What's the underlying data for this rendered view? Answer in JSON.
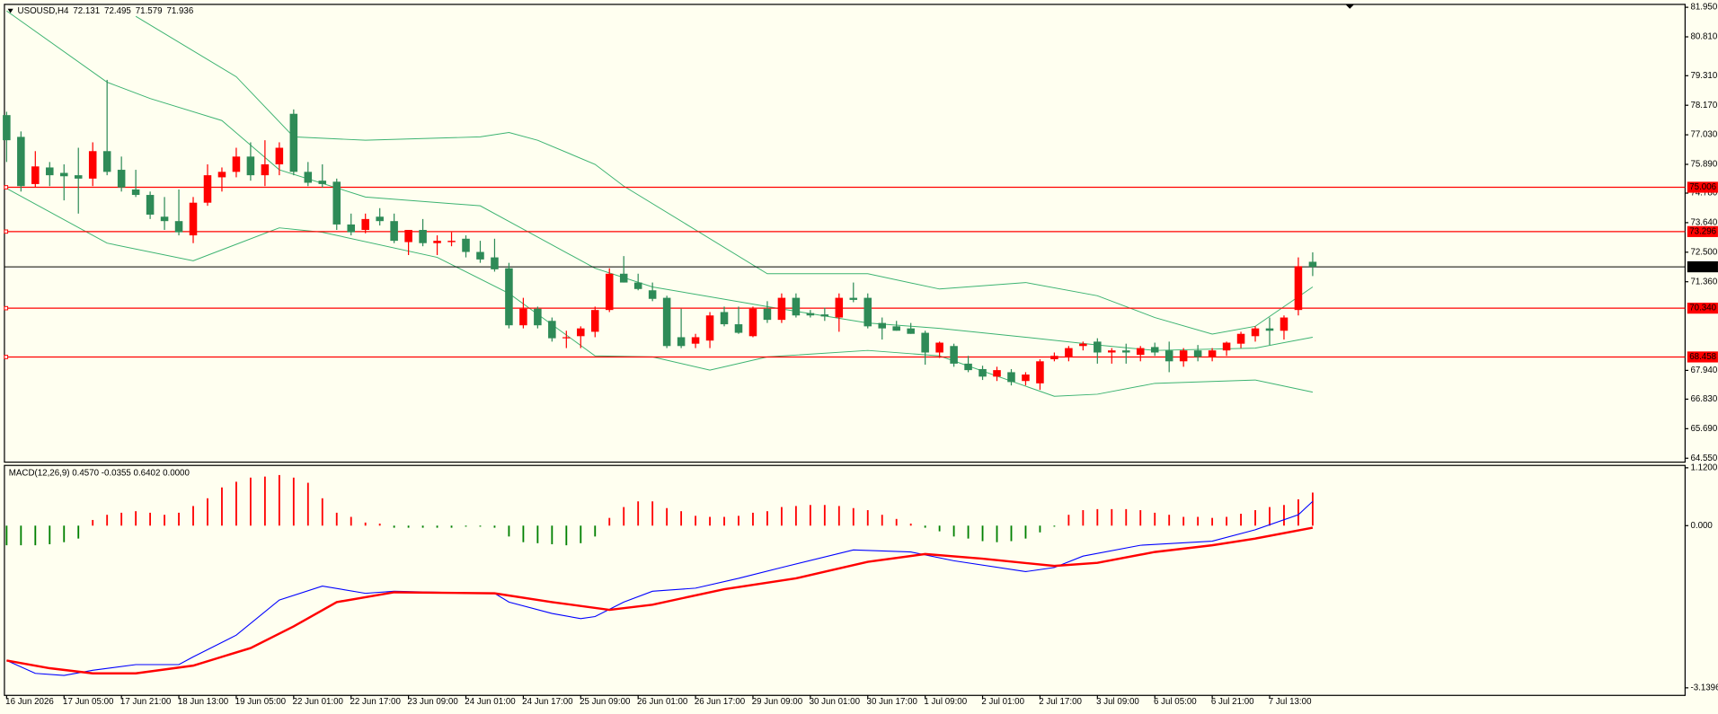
{
  "chart_data": [
    {
      "type": "candlestick",
      "title": "USOUSD,H4",
      "categories": [
        "16 Jun 2026",
        null,
        null,
        null,
        "17 Jun 05:00",
        null,
        null,
        null,
        "17 Jun 21:00",
        null,
        null,
        null,
        "18 Jun 13:00",
        null,
        null,
        null,
        "19 Jun 05:00",
        null,
        null,
        null,
        "22 Jun 01:00",
        null,
        null,
        null,
        "22 Jun 17:00",
        null,
        null,
        null,
        "23 Jun 09:00",
        null,
        null,
        null,
        "24 Jun 01:00",
        null,
        null,
        null,
        "24 Jun 17:00",
        null,
        null,
        null,
        "25 Jun 09:00",
        null,
        null,
        null,
        "26 Jun 01:00",
        null,
        null,
        null,
        "26 Jun 17:00",
        null,
        null,
        null,
        "29 Jun 09:00",
        null,
        null,
        null,
        "30 Jun 01:00",
        null,
        null,
        null,
        "30 Jun 17:00",
        null,
        null,
        null,
        "1 Jul 09:00",
        null,
        null,
        null,
        "2 Jul 01:00",
        null,
        null,
        null,
        "2 Jul 17:00",
        null,
        null,
        null,
        "3 Jul 09:00",
        null,
        null,
        null,
        "6 Jul 05:00",
        null,
        null,
        null,
        "6 Jul 21:00",
        null,
        null,
        null,
        "7 Jul 13:00",
        null,
        null,
        null
      ],
      "open": [
        77.79,
        76.95,
        75.13,
        75.77,
        75.56,
        75.47,
        75.34,
        76.4,
        75.68,
        74.92,
        74.71,
        73.87,
        73.7,
        73.15,
        74.41,
        75.39,
        75.6,
        76.19,
        75.47,
        75.89,
        77.84,
        75.6,
        75.26,
        75.22,
        73.57,
        73.36,
        73.87,
        73.7,
        72.89,
        73.36,
        72.85,
        72.89,
        73.02,
        72.51,
        72.3,
        71.88,
        69.68,
        70.32,
        69.85,
        69.18,
        69.26,
        69.43,
        70.27,
        71.67,
        71.33,
        71.03,
        70.74,
        69.22,
        68.97,
        69.09,
        70.19,
        69.72,
        69.26,
        70.32,
        69.89,
        70.74,
        70.15,
        70.1,
        69.98,
        70.74,
        70.74,
        69.77,
        69.64,
        69.56,
        69.39,
        68.63,
        68.88,
        68.2,
        67.99,
        67.7,
        67.87,
        67.53,
        67.44,
        68.37,
        68.46,
        68.88,
        69.05,
        68.63,
        68.71,
        68.54,
        68.84,
        68.71,
        68.29,
        68.71,
        68.46,
        68.71,
        68.97,
        69.26,
        69.56,
        69.47,
        70.27,
        72.131
      ],
      "high": [
        77.92,
        77.16,
        76.4,
        75.98,
        75.89,
        76.53,
        76.74,
        79.15,
        76.19,
        75.68,
        74.84,
        74.63,
        74.92,
        74.63,
        75.89,
        75.77,
        76.53,
        76.74,
        76.82,
        76.74,
        78.01,
        75.98,
        75.89,
        75.34,
        73.99,
        73.99,
        74.2,
        73.99,
        73.36,
        73.78,
        73.15,
        73.27,
        73.15,
        72.94,
        73.02,
        72.09,
        70.74,
        70.4,
        69.98,
        69.47,
        69.64,
        70.4,
        71.88,
        72.35,
        71.67,
        71.33,
        70.82,
        70.32,
        69.35,
        70.19,
        70.4,
        70.4,
        70.4,
        70.61,
        70.91,
        70.91,
        70.27,
        70.36,
        70.91,
        71.33,
        70.91,
        69.98,
        69.85,
        69.77,
        69.47,
        69.05,
        68.97,
        68.5,
        68.12,
        68.08,
        67.99,
        67.87,
        68.37,
        68.63,
        68.88,
        69.05,
        69.18,
        68.8,
        68.97,
        68.88,
        69.01,
        69.05,
        68.8,
        68.92,
        68.8,
        69.05,
        69.43,
        69.64,
        69.98,
        70.06,
        72.3,
        72.495
      ],
      "low": [
        75.98,
        74.84,
        75.0,
        75.05,
        74.5,
        73.99,
        75.05,
        75.47,
        74.84,
        74.63,
        73.78,
        73.36,
        73.15,
        72.85,
        74.29,
        74.84,
        75.39,
        75.26,
        75.05,
        75.47,
        75.47,
        75.05,
        75.0,
        73.36,
        73.15,
        73.23,
        73.53,
        72.85,
        72.39,
        72.73,
        72.39,
        72.73,
        72.3,
        72.09,
        71.75,
        69.56,
        69.56,
        69.56,
        69.05,
        68.8,
        68.8,
        69.22,
        70.19,
        71.33,
        71.03,
        70.61,
        68.8,
        68.8,
        68.8,
        68.8,
        69.64,
        69.35,
        69.22,
        69.77,
        69.77,
        69.98,
        69.98,
        69.85,
        69.43,
        70.57,
        69.56,
        69.13,
        69.47,
        69.35,
        68.16,
        68.42,
        68.08,
        67.87,
        67.57,
        67.53,
        67.36,
        67.36,
        67.19,
        68.29,
        68.29,
        68.71,
        68.2,
        68.2,
        68.2,
        68.29,
        68.5,
        67.87,
        68.08,
        68.29,
        68.29,
        68.5,
        68.8,
        69.05,
        68.92,
        69.13,
        70.06,
        71.579
      ],
      "close": [
        76.82,
        75.05,
        75.81,
        75.47,
        75.43,
        75.34,
        76.4,
        75.6,
        75.0,
        74.71,
        73.95,
        73.7,
        73.27,
        74.41,
        75.47,
        75.6,
        76.19,
        75.47,
        75.89,
        76.53,
        75.6,
        75.18,
        75.13,
        73.57,
        73.27,
        73.78,
        73.7,
        72.94,
        73.36,
        72.85,
        72.94,
        72.94,
        72.51,
        72.22,
        71.84,
        69.68,
        70.32,
        69.68,
        69.18,
        69.22,
        69.56,
        70.27,
        71.67,
        71.33,
        71.08,
        70.7,
        68.88,
        68.88,
        69.22,
        70.06,
        69.72,
        69.39,
        70.32,
        69.89,
        70.74,
        70.06,
        70.06,
        70.02,
        70.74,
        70.66,
        69.64,
        69.56,
        69.47,
        69.35,
        68.63,
        69.01,
        68.2,
        67.95,
        67.7,
        67.95,
        67.49,
        67.78,
        68.29,
        68.5,
        68.8,
        68.97,
        68.63,
        68.71,
        68.63,
        68.8,
        68.63,
        68.29,
        68.71,
        68.46,
        68.71,
        69.01,
        69.35,
        69.56,
        69.47,
        69.98,
        71.96,
        71.936
      ],
      "up_color": "#ff0000",
      "down_color": "#2e8b57",
      "bands": [
        {
          "color": "#3cb371",
          "x": [
            9,
            16,
            20,
            25,
            33,
            35,
            37,
            41,
            43,
            53,
            60,
            65,
            71,
            76,
            80,
            84,
            87,
            91
          ],
          "values": [
            81.6,
            79.27,
            76.95,
            76.82,
            76.95,
            77.12,
            76.82,
            75.89,
            75.05,
            71.67,
            71.67,
            71.08,
            71.33,
            70.82,
            69.98,
            69.34,
            69.64,
            71.16
          ]
        },
        {
          "color": "#3cb371",
          "x": [
            0,
            7,
            10,
            15,
            19,
            25,
            33,
            41,
            45,
            53,
            60,
            65,
            71,
            76,
            80,
            87,
            91
          ],
          "values": [
            81.81,
            79.06,
            78.43,
            77.58,
            75.68,
            74.63,
            74.29,
            71.88,
            71.16,
            70.4,
            69.77,
            69.56,
            69.22,
            68.92,
            68.71,
            68.8,
            69.22
          ]
        },
        {
          "color": "#3cb371",
          "x": [
            0,
            7,
            13,
            19,
            22,
            30,
            35,
            41,
            45,
            49,
            53,
            60,
            65,
            73,
            76,
            80,
            87,
            91
          ],
          "values": [
            74.96,
            72.85,
            72.17,
            73.44,
            73.27,
            72.3,
            70.91,
            68.5,
            68.46,
            67.95,
            68.46,
            68.71,
            68.5,
            66.94,
            67.02,
            67.44,
            67.57,
            67.1
          ]
        }
      ],
      "levels": [
        75.006,
        73.296,
        {
          "value": 70.34,
          "label": "70.340"
        },
        68.458
      ],
      "level_color": "#ff0000",
      "ylim": [
        64.4,
        82.02
      ],
      "yticks": [
        {
          "value": 81.95,
          "label": "81.950"
        },
        {
          "value": 80.81,
          "label": "80.810"
        },
        {
          "value": 79.31,
          "label": "79.310"
        },
        {
          "value": 78.17,
          "label": "78.170"
        },
        {
          "value": 77.03,
          "label": "77.030"
        },
        {
          "value": 75.89,
          "label": "75.890"
        },
        {
          "value": 74.78,
          "label": "74.780"
        },
        {
          "value": 73.64,
          "label": "73.640"
        },
        {
          "value": 72.5,
          "label": "72.500"
        },
        {
          "value": 71.36,
          "label": "71.360"
        },
        {
          "value": 67.94,
          "label": "67.940"
        },
        {
          "value": 66.83,
          "label": "66.830"
        },
        {
          "value": 65.69,
          "label": "65.690"
        },
        {
          "value": 64.55,
          "label": "64.550"
        }
      ]
    },
    {
      "type": "macd",
      "title": "MACD(12,26,9) 0.4570 -0.0355 0.6402 0.0000",
      "histogram": {
        "up_color": "#ff0000",
        "down_color": "#008000",
        "values": [
          -0.38,
          -0.38,
          -0.38,
          -0.36,
          -0.32,
          -0.25,
          0.11,
          0.21,
          0.25,
          0.28,
          0.25,
          0.21,
          0.25,
          0.38,
          0.53,
          0.74,
          0.85,
          0.93,
          0.95,
          0.98,
          0.93,
          0.83,
          0.53,
          0.25,
          0.17,
          0.06,
          0.04,
          -0.04,
          -0.04,
          -0.04,
          -0.04,
          -0.04,
          -0.02,
          -0.02,
          -0.04,
          -0.21,
          -0.32,
          -0.34,
          -0.36,
          -0.38,
          -0.34,
          -0.21,
          0.15,
          0.36,
          0.47,
          0.47,
          0.34,
          0.28,
          0.19,
          0.17,
          0.17,
          0.19,
          0.25,
          0.28,
          0.36,
          0.38,
          0.4,
          0.4,
          0.38,
          0.34,
          0.3,
          0.21,
          0.13,
          0.04,
          -0.04,
          -0.11,
          -0.21,
          -0.25,
          -0.3,
          -0.32,
          -0.3,
          -0.25,
          -0.13,
          -0.02,
          0.21,
          0.3,
          0.32,
          0.32,
          0.32,
          0.3,
          0.25,
          0.21,
          0.17,
          0.17,
          0.15,
          0.17,
          0.23,
          0.3,
          0.36,
          0.4,
          0.51,
          0.64
        ]
      },
      "series": [
        {
          "color": "#0000ff",
          "x": [
            0,
            2,
            4,
            6,
            9,
            12,
            13,
            16,
            19,
            22,
            25,
            27,
            30,
            34,
            35,
            38,
            40,
            41,
            43,
            45,
            48,
            51,
            54,
            59,
            63,
            66,
            71,
            73,
            75,
            79,
            84,
            87,
            90,
            91
          ],
          "values": [
            -2.61,
            -2.86,
            -2.9,
            -2.8,
            -2.69,
            -2.69,
            -2.54,
            -2.12,
            -1.44,
            -1.17,
            -1.31,
            -1.27,
            -1.29,
            -1.31,
            -1.48,
            -1.7,
            -1.8,
            -1.76,
            -1.48,
            -1.27,
            -1.21,
            -1.02,
            -0.81,
            -0.47,
            -0.51,
            -0.68,
            -0.89,
            -0.81,
            -0.59,
            -0.38,
            -0.3,
            -0.08,
            0.21,
            0.47
          ]
        },
        {
          "color": "#ff0000",
          "x": [
            0,
            3,
            6,
            9,
            13,
            17,
            20,
            23,
            27,
            34,
            38,
            42,
            45,
            50,
            55,
            60,
            64,
            68,
            73,
            76,
            80,
            84,
            87,
            91
          ],
          "values": [
            -2.61,
            -2.76,
            -2.86,
            -2.86,
            -2.71,
            -2.37,
            -1.95,
            -1.48,
            -1.29,
            -1.31,
            -1.48,
            -1.63,
            -1.53,
            -1.23,
            -1.02,
            -0.7,
            -0.55,
            -0.64,
            -0.78,
            -0.72,
            -0.51,
            -0.38,
            -0.25,
            -0.04
          ]
        }
      ],
      "ylim": [
        -3.286,
        1.166
      ],
      "yticks": [
        {
          "value": 1.12,
          "label": "1.1200"
        },
        {
          "value": 0,
          "label": "0.000"
        },
        -3.1396
      ]
    }
  ]
}
